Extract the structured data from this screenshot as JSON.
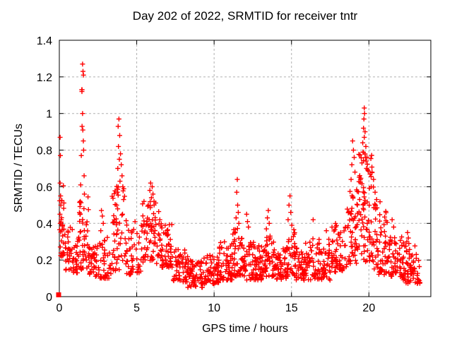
{
  "chart_data": {
    "type": "scatter",
    "title": "Day 202 of 2022, SRMTID for receiver tntr",
    "xlabel": "GPS time / hours",
    "ylabel": "SRMTID / TECUs",
    "xlim": [
      0,
      24
    ],
    "ylim": [
      0,
      1.4
    ],
    "xticks": [
      {
        "v": 0,
        "label": "0"
      },
      {
        "v": 5,
        "label": "5"
      },
      {
        "v": 10,
        "label": "10"
      },
      {
        "v": 15,
        "label": "15"
      },
      {
        "v": 20,
        "label": "20"
      }
    ],
    "yticks": [
      {
        "v": 0,
        "label": "0"
      },
      {
        "v": 0.2,
        "label": "0.2"
      },
      {
        "v": 0.4,
        "label": "0.4"
      },
      {
        "v": 0.6,
        "label": "0.6"
      },
      {
        "v": 0.8,
        "label": "0.8"
      },
      {
        "v": 1,
        "label": "1"
      },
      {
        "v": 1.2,
        "label": "1.2"
      },
      {
        "v": 1.4,
        "label": "1.4"
      }
    ],
    "grid": {
      "show": true,
      "color": "#b0b0b0",
      "dash": "3,3"
    },
    "axis_color": "#000000",
    "marker": {
      "shape": "plus",
      "color": "#ff0000",
      "size": 7,
      "stroke_width": 1.4
    },
    "origin_marker": {
      "shape": "filled-square",
      "color": "#ff0000",
      "x": 0,
      "y": 0.01,
      "size": 7
    },
    "legend": {
      "show": false
    },
    "seed": 11,
    "density_bins": [
      [
        0.0,
        0.35,
        28,
        0.22,
        0.62,
        1.6
      ],
      [
        0.35,
        0.9,
        30,
        0.14,
        0.38,
        1.5
      ],
      [
        0.9,
        1.25,
        22,
        0.13,
        0.32,
        1.5
      ],
      [
        1.25,
        1.9,
        45,
        0.14,
        0.55,
        1.4
      ],
      [
        1.9,
        2.6,
        36,
        0.11,
        0.28,
        1.3
      ],
      [
        2.6,
        3.4,
        36,
        0.1,
        0.34,
        1.6
      ],
      [
        3.4,
        4.35,
        55,
        0.14,
        0.62,
        1.3
      ],
      [
        4.35,
        5.3,
        46,
        0.12,
        0.42,
        1.5
      ],
      [
        5.3,
        6.5,
        72,
        0.18,
        0.52,
        1.2
      ],
      [
        6.5,
        7.3,
        55,
        0.16,
        0.4,
        1.3
      ],
      [
        7.3,
        8.3,
        56,
        0.08,
        0.26,
        1.5
      ],
      [
        8.3,
        9.3,
        60,
        0.05,
        0.2,
        1.3
      ],
      [
        9.3,
        10.3,
        64,
        0.07,
        0.23,
        1.3
      ],
      [
        10.3,
        11.2,
        60,
        0.09,
        0.3,
        1.5
      ],
      [
        11.2,
        11.8,
        40,
        0.11,
        0.38,
        1.6
      ],
      [
        11.8,
        12.6,
        50,
        0.09,
        0.3,
        1.5
      ],
      [
        12.6,
        13.3,
        54,
        0.09,
        0.28,
        1.4
      ],
      [
        13.3,
        13.9,
        40,
        0.11,
        0.34,
        1.5
      ],
      [
        13.9,
        14.7,
        50,
        0.09,
        0.28,
        1.4
      ],
      [
        14.7,
        15.3,
        40,
        0.11,
        0.38,
        1.5
      ],
      [
        15.3,
        16.3,
        62,
        0.09,
        0.3,
        1.4
      ],
      [
        16.3,
        17.5,
        66,
        0.09,
        0.32,
        1.5
      ],
      [
        17.5,
        18.6,
        62,
        0.13,
        0.4,
        1.4
      ],
      [
        18.6,
        19.3,
        52,
        0.18,
        0.6,
        1.3
      ],
      [
        19.3,
        20.3,
        80,
        0.18,
        0.8,
        1.2
      ],
      [
        20.3,
        21.2,
        66,
        0.12,
        0.52,
        1.4
      ],
      [
        21.2,
        22.2,
        60,
        0.11,
        0.33,
        1.4
      ],
      [
        22.2,
        23.3,
        72,
        0.07,
        0.3,
        1.4
      ]
    ],
    "peak_points": [
      [
        0.05,
        0.87
      ],
      [
        0.07,
        0.77
      ],
      [
        0.05,
        0.62
      ],
      [
        0.08,
        0.55
      ],
      [
        0.1,
        0.5
      ],
      [
        0.04,
        0.45
      ],
      [
        0.12,
        0.42
      ],
      [
        0.06,
        0.4
      ],
      [
        1.5,
        1.27
      ],
      [
        1.53,
        1.23
      ],
      [
        1.56,
        1.21
      ],
      [
        1.45,
        1.13
      ],
      [
        1.47,
        1.13
      ],
      [
        1.46,
        1.12
      ],
      [
        1.5,
        1.0
      ],
      [
        1.47,
        0.93
      ],
      [
        1.52,
        0.91
      ],
      [
        1.55,
        0.85
      ],
      [
        1.57,
        0.8
      ],
      [
        1.42,
        0.77
      ],
      [
        1.6,
        0.66
      ],
      [
        1.38,
        0.61
      ],
      [
        1.62,
        0.56
      ],
      [
        1.35,
        0.52
      ],
      [
        2.72,
        0.47
      ],
      [
        2.78,
        0.44
      ],
      [
        2.84,
        0.4
      ],
      [
        2.68,
        0.36
      ],
      [
        3.85,
        0.97
      ],
      [
        3.8,
        0.93
      ],
      [
        3.9,
        0.88
      ],
      [
        3.82,
        0.82
      ],
      [
        3.95,
        0.78
      ],
      [
        3.88,
        0.75
      ],
      [
        4.0,
        0.72
      ],
      [
        3.78,
        0.7
      ],
      [
        4.05,
        0.66
      ],
      [
        3.92,
        0.63
      ],
      [
        4.1,
        0.6
      ],
      [
        3.75,
        0.57
      ],
      [
        4.15,
        0.53
      ],
      [
        3.7,
        0.5
      ],
      [
        5.9,
        0.62
      ],
      [
        6.0,
        0.6
      ],
      [
        5.85,
        0.58
      ],
      [
        6.05,
        0.56
      ],
      [
        5.95,
        0.54
      ],
      [
        6.12,
        0.52
      ],
      [
        5.75,
        0.5
      ],
      [
        11.5,
        0.64
      ],
      [
        11.46,
        0.57
      ],
      [
        11.52,
        0.5
      ],
      [
        11.56,
        0.46
      ],
      [
        11.42,
        0.43
      ],
      [
        11.6,
        0.4
      ],
      [
        12.1,
        0.45
      ],
      [
        12.16,
        0.41
      ],
      [
        12.22,
        0.38
      ],
      [
        13.5,
        0.47
      ],
      [
        13.44,
        0.43
      ],
      [
        13.56,
        0.4
      ],
      [
        13.38,
        0.37
      ],
      [
        14.9,
        0.55
      ],
      [
        14.84,
        0.5
      ],
      [
        14.95,
        0.46
      ],
      [
        14.78,
        0.42
      ],
      [
        15.02,
        0.39
      ],
      [
        16.4,
        0.42
      ],
      [
        17.25,
        0.36
      ],
      [
        18.95,
        0.85
      ],
      [
        19.0,
        0.8
      ],
      [
        19.05,
        0.76
      ],
      [
        18.9,
        0.72
      ],
      [
        19.1,
        0.68
      ],
      [
        18.85,
        0.64
      ],
      [
        19.7,
        1.03
      ],
      [
        19.72,
        1.0
      ],
      [
        19.68,
        0.97
      ],
      [
        19.65,
        0.92
      ],
      [
        19.75,
        0.9
      ],
      [
        19.7,
        0.87
      ],
      [
        19.6,
        0.84
      ],
      [
        19.8,
        0.82
      ],
      [
        19.62,
        0.79
      ],
      [
        19.78,
        0.76
      ],
      [
        19.55,
        0.73
      ],
      [
        19.85,
        0.7
      ],
      [
        20.2,
        0.68
      ],
      [
        20.3,
        0.64
      ],
      [
        20.15,
        0.6
      ],
      [
        20.4,
        0.57
      ],
      [
        20.5,
        0.53
      ],
      [
        21.5,
        0.42
      ],
      [
        21.6,
        0.38
      ],
      [
        22.5,
        0.35
      ],
      [
        22.55,
        0.32
      ],
      [
        22.45,
        0.3
      ]
    ]
  }
}
